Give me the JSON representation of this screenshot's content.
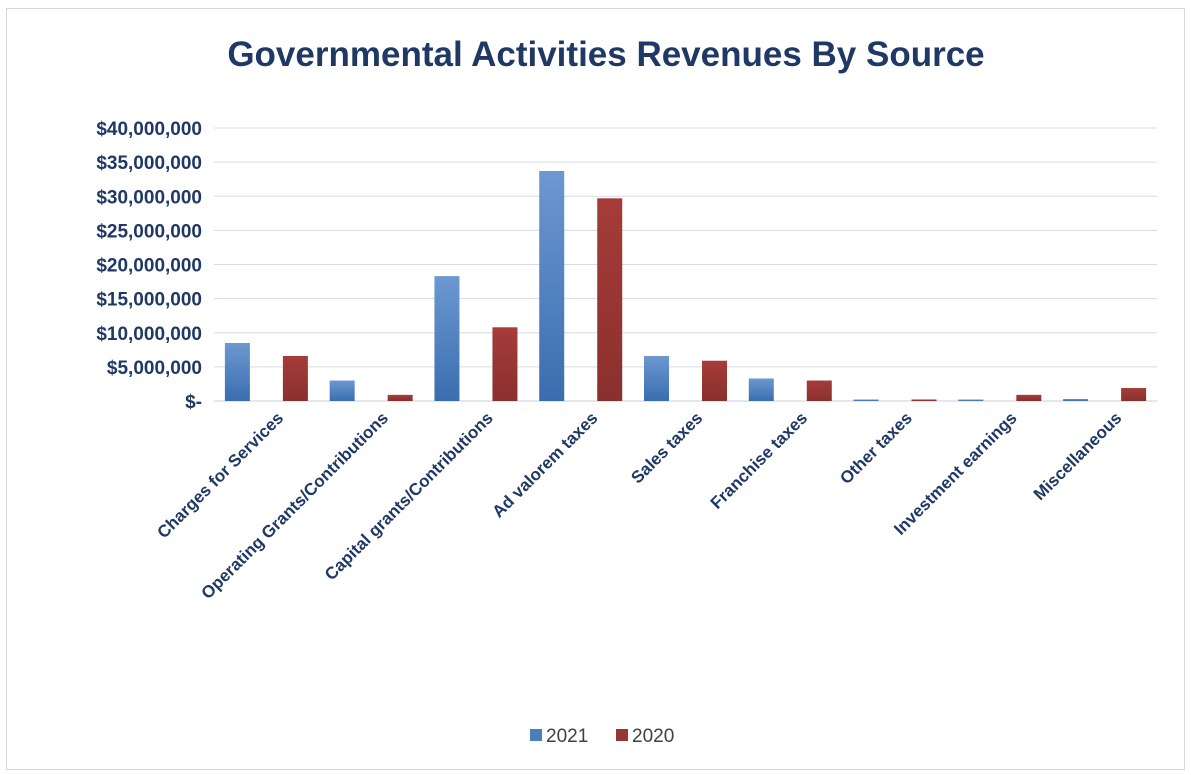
{
  "chart_data": {
    "type": "bar",
    "title": "Governmental Activities Revenues By Source",
    "xlabel": "",
    "ylabel": "",
    "categories": [
      "Charges for Services",
      "Operating Grants/Contributions",
      "Capital grants/Contributions",
      "Ad valorem taxes",
      "Sales taxes",
      "Franchise taxes",
      "Other taxes",
      "Investment earnings",
      "Miscellaneous"
    ],
    "series": [
      {
        "name": "2021",
        "color": "#4a7ebb",
        "values": [
          8500000,
          3000000,
          18300000,
          33700000,
          6600000,
          3300000,
          200000,
          50000,
          300000
        ]
      },
      {
        "name": "2020",
        "color": "#943634",
        "values": [
          6600000,
          900000,
          10800000,
          29700000,
          5900000,
          3000000,
          200000,
          900000,
          1900000
        ]
      }
    ],
    "ylim": [
      0,
      40000000
    ],
    "yticks": [
      0,
      5000000,
      10000000,
      15000000,
      20000000,
      25000000,
      30000000,
      35000000,
      40000000
    ],
    "ytick_labels": [
      "$-",
      "$5,000,000",
      "$10,000,000",
      "$15,000,000",
      "$20,000,000",
      "$25,000,000",
      "$30,000,000",
      "$35,000,000",
      "$40,000,000"
    ],
    "grid": true,
    "legend_position": "bottom"
  }
}
